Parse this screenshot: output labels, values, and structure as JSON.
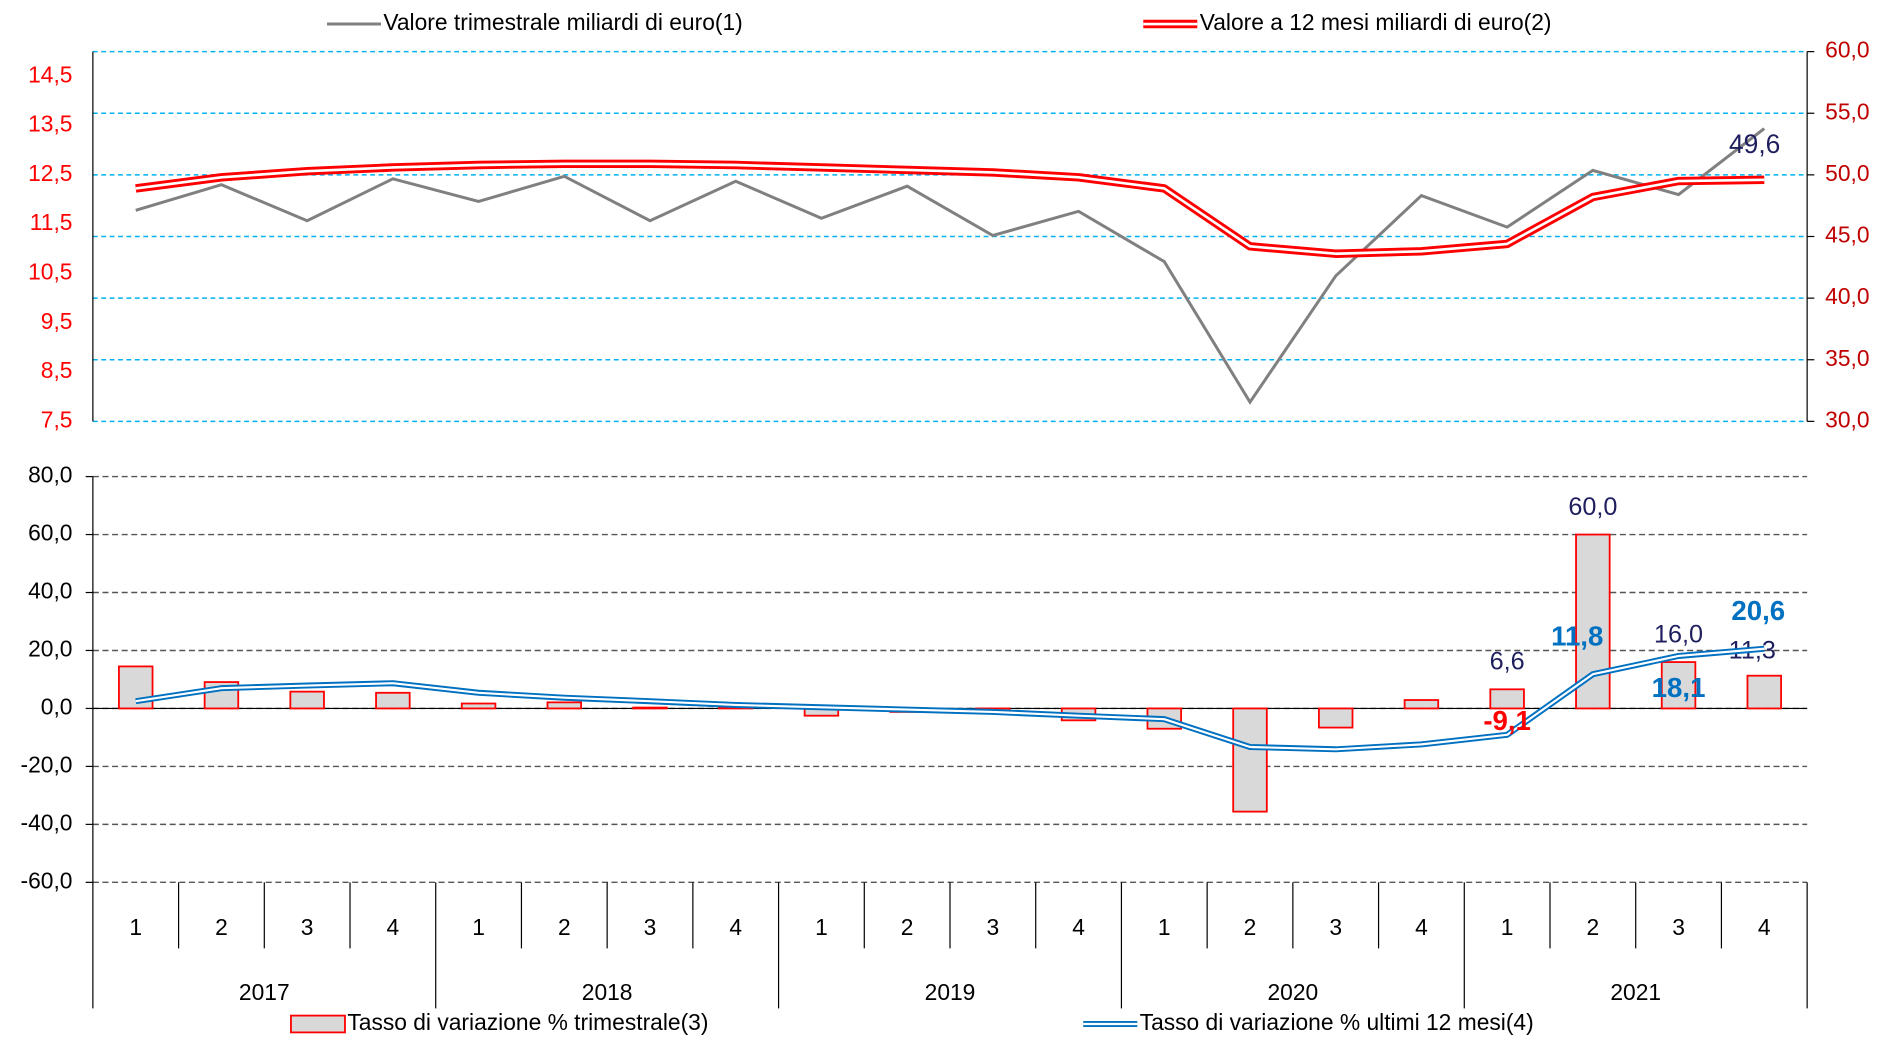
{
  "chart_data": [
    {
      "type": "line",
      "ylim": [
        7.5,
        15
      ],
      "yticks": [
        {
          "value": 7.5,
          "label": "7,5"
        },
        {
          "value": 8.5,
          "label": "8,5"
        },
        {
          "value": 9.5,
          "label": "9,5"
        },
        {
          "value": 10.5,
          "label": "10,5"
        },
        {
          "value": 11.5,
          "label": "11,5"
        },
        {
          "value": 12.5,
          "label": "12,5"
        },
        {
          "value": 13.5,
          "label": "13,5"
        },
        {
          "value": 14.5,
          "label": "14,5"
        }
      ],
      "y2lim": [
        30,
        60
      ],
      "y2ticks": [
        {
          "value": 30,
          "label": "30,0"
        },
        {
          "value": 35,
          "label": "35,0"
        },
        {
          "value": 40,
          "label": "40,0"
        },
        {
          "value": 45,
          "label": "45,0"
        },
        {
          "value": 50,
          "label": "50,0"
        },
        {
          "value": 55,
          "label": "55,0"
        },
        {
          "value": 60,
          "label": "60,0"
        }
      ],
      "grid": true,
      "series": [
        {
          "name": "Valore trimestrale miliardi di euro(1)",
          "color": "#808080",
          "values": [
            11.78,
            12.3,
            11.57,
            12.42,
            11.96,
            12.47,
            11.57,
            12.37,
            11.62,
            12.27,
            11.27,
            11.76,
            10.74,
            7.89,
            10.45,
            12.08,
            11.44,
            12.59,
            12.1,
            13.44
          ]
        },
        {
          "name": "Valore a 12 mesi miliardi di euro(2)",
          "color": "#ff0000",
          "axis": "y2",
          "values": [
            48.9,
            49.8,
            50.3,
            50.6,
            50.8,
            50.9,
            50.9,
            50.8,
            50.6,
            50.4,
            50.2,
            49.8,
            48.9,
            44.2,
            43.6,
            43.8,
            44.4,
            48.2,
            49.5,
            49.6
          ],
          "value_labels": [
            null,
            null,
            null,
            null,
            null,
            null,
            null,
            null,
            null,
            null,
            null,
            null,
            null,
            null,
            null,
            null,
            null,
            null,
            null,
            "49,6"
          ]
        }
      ]
    },
    {
      "type": "bar",
      "categories": [
        "1",
        "2",
        "3",
        "4",
        "1",
        "2",
        "3",
        "4",
        "1",
        "2",
        "3",
        "4",
        "1",
        "2",
        "3",
        "4",
        "1",
        "2",
        "3",
        "4"
      ],
      "groups": [
        "2017",
        "2018",
        "2019",
        "2020",
        "2021"
      ],
      "ylim": [
        -60,
        80
      ],
      "yticks": [
        {
          "value": -60,
          "label": "-60,0"
        },
        {
          "value": -40,
          "label": "-40,0"
        },
        {
          "value": -20,
          "label": "-20,0"
        },
        {
          "value": 0,
          "label": "0,0"
        },
        {
          "value": 20,
          "label": "20,0"
        },
        {
          "value": 40,
          "label": "40,0"
        },
        {
          "value": 60,
          "label": "60,0"
        },
        {
          "value": 80,
          "label": "80,0"
        }
      ],
      "grid": true,
      "series": [
        {
          "name": "Tasso di variazione % trimestrale(3)",
          "type": "bar",
          "color": "#d9d9d9",
          "values": [
            14.5,
            9.1,
            5.8,
            5.4,
            1.7,
            2.1,
            0.3,
            0.2,
            -2.5,
            -1.2,
            -1.0,
            -4.1,
            -7.0,
            -35.6,
            -6.6,
            2.9,
            6.6,
            60.0,
            16.0,
            11.3
          ],
          "value_labels": [
            null,
            null,
            null,
            null,
            null,
            null,
            null,
            null,
            null,
            null,
            null,
            null,
            null,
            null,
            null,
            null,
            "6,6",
            "60,0",
            "16,0",
            "11,3"
          ]
        },
        {
          "name": "Tasso di variazione % ultimi 12 mesi(4)",
          "type": "line",
          "color": "#0070c0",
          "values": [
            2.5,
            7.0,
            7.9,
            8.7,
            5.4,
            3.7,
            2.5,
            1.2,
            0.4,
            -0.4,
            -1.2,
            -2.5,
            -3.7,
            -13.3,
            -14.1,
            -12.4,
            -9.1,
            11.8,
            18.1,
            20.6
          ],
          "value_labels": [
            null,
            null,
            null,
            null,
            null,
            null,
            null,
            null,
            null,
            null,
            null,
            null,
            null,
            null,
            null,
            null,
            "-9,1",
            "11,8",
            "18,1",
            "20,6"
          ]
        }
      ]
    }
  ]
}
